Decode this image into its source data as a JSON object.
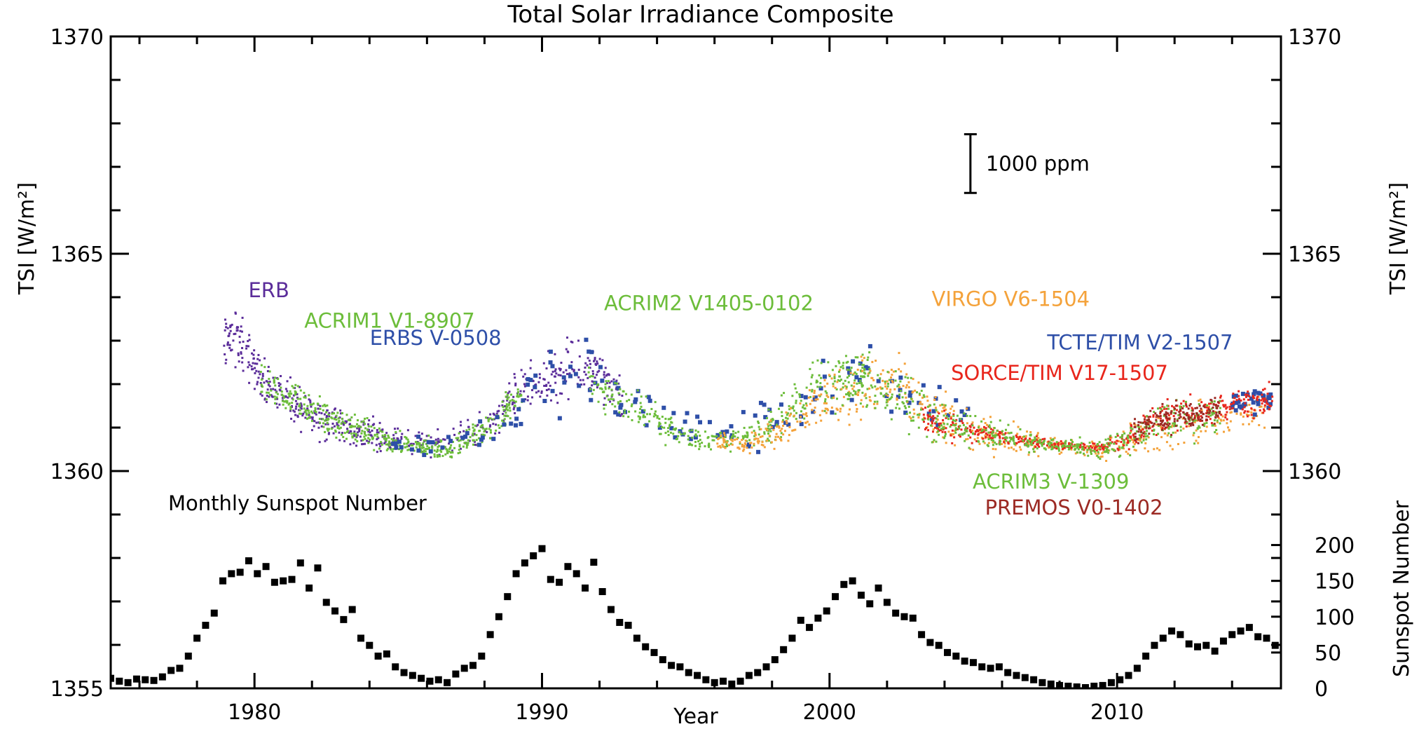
{
  "chart_data": {
    "type": "scatter",
    "title": "Total Solar Irradiance Composite",
    "xlabel": "Year",
    "ylabel": "TSI [W/m²]",
    "ylabel_right": "TSI [W/m²]",
    "y2label": "Sunspot Number",
    "xlim": [
      1975,
      2015.7
    ],
    "ylim": [
      1355,
      1370
    ],
    "y2lim": [
      0,
      225
    ],
    "xticks": [
      1980,
      1990,
      2000,
      2010
    ],
    "yticks": [
      1355,
      1360,
      1365,
      1370
    ],
    "y2ticks": [
      0,
      50,
      100,
      150,
      200
    ],
    "grid": false,
    "scale_bar": {
      "label": "1000 ppm",
      "x": 2004.9,
      "y_low": 1366.4,
      "y_high": 1367.75
    },
    "sunspot_label": "Monthly Sunspot Number",
    "series": [
      {
        "name": "ERB",
        "color": "#5b2d9a",
        "marker": "dot",
        "label_pos": [
          1980.5,
          1364.0
        ],
        "x": [
          1978.9,
          1979.3,
          1979.7,
          1980.1,
          1980.5,
          1981.0,
          1981.5,
          1982.0,
          1982.5,
          1983.0,
          1983.5,
          1984.0,
          1984.5,
          1985.0,
          1986.0,
          1987.0,
          1988.0,
          1988.7,
          1989.3,
          1990.0,
          1990.6,
          1991.2,
          1991.8,
          1992.3,
          1992.8
        ],
        "y": [
          1362.8,
          1363.2,
          1362.7,
          1362.3,
          1362.0,
          1361.7,
          1361.5,
          1361.3,
          1361.2,
          1361.0,
          1360.9,
          1360.9,
          1360.8,
          1360.7,
          1360.6,
          1360.8,
          1361.0,
          1361.4,
          1361.9,
          1362.1,
          1362.2,
          1362.4,
          1362.3,
          1361.9,
          1361.6
        ],
        "spread": [
          0.5,
          0.6,
          0.5,
          0.4,
          0.4,
          0.4,
          0.4,
          0.4,
          0.4,
          0.35,
          0.3,
          0.3,
          0.25,
          0.25,
          0.25,
          0.25,
          0.3,
          0.35,
          0.45,
          0.5,
          0.5,
          0.55,
          0.5,
          0.45,
          0.4
        ]
      },
      {
        "name": "ACRIM1 V1-8907",
        "color": "#6cbd3a",
        "marker": "dot",
        "label_pos": [
          1984.7,
          1363.3
        ],
        "x": [
          1980.2,
          1980.8,
          1981.3,
          1981.8,
          1982.3,
          1982.8,
          1983.3,
          1983.8,
          1984.3,
          1984.8,
          1985.3,
          1985.8,
          1986.3,
          1986.8,
          1987.3,
          1987.8,
          1988.3,
          1988.8,
          1989.3
        ],
        "y": [
          1362.0,
          1361.8,
          1361.6,
          1361.5,
          1361.3,
          1361.1,
          1361.0,
          1360.9,
          1360.75,
          1360.65,
          1360.6,
          1360.55,
          1360.5,
          1360.55,
          1360.65,
          1360.85,
          1361.1,
          1361.5,
          1361.8
        ],
        "spread": [
          0.35,
          0.35,
          0.35,
          0.35,
          0.35,
          0.3,
          0.3,
          0.3,
          0.25,
          0.2,
          0.2,
          0.2,
          0.2,
          0.2,
          0.2,
          0.25,
          0.3,
          0.35,
          0.35
        ]
      },
      {
        "name": "ERBS V-0508",
        "color": "#2e4fa8",
        "marker": "square",
        "label_pos": [
          1986.3,
          1362.9
        ],
        "x": [
          1984.8,
          1985.5,
          1986.5,
          1987.5,
          1988.5,
          1989.3,
          1990.0,
          1990.7,
          1991.4,
          1992.0,
          1992.7,
          1993.5,
          1994.3,
          1995.0,
          1995.8,
          1996.5,
          1997.3,
          1998.0,
          1998.8,
          1999.5,
          2000.2,
          2001.0,
          2001.8,
          2002.5,
          2003.3,
          2004.0,
          2005.0
        ],
        "y": [
          1360.7,
          1360.6,
          1360.6,
          1360.8,
          1361.1,
          1361.5,
          1361.9,
          1362.1,
          1362.2,
          1362.0,
          1361.7,
          1361.4,
          1361.2,
          1361.0,
          1360.9,
          1360.85,
          1360.95,
          1361.1,
          1361.5,
          1361.8,
          1362.0,
          1362.1,
          1362.0,
          1361.8,
          1361.6,
          1361.5,
          1361.4
        ],
        "spread": [
          0.3,
          0.25,
          0.25,
          0.3,
          0.35,
          0.6,
          0.7,
          0.7,
          0.7,
          0.7,
          0.6,
          0.6,
          0.5,
          0.45,
          0.4,
          0.4,
          0.5,
          0.5,
          0.6,
          0.6,
          0.7,
          0.7,
          0.6,
          0.6,
          0.5,
          0.5,
          0.4
        ]
      },
      {
        "name": "ACRIM2 V1405-0102",
        "color": "#6cbd3a",
        "marker": "dot",
        "label_pos": [
          1995.8,
          1363.7
        ],
        "x": [
          1991.6,
          1992.3,
          1993.0,
          1993.7,
          1994.4,
          1995.1,
          1995.8,
          1996.5,
          1997.2,
          1997.9,
          1998.6,
          1999.3,
          2000.0,
          2000.7,
          2001.4
        ],
        "y": [
          1362.1,
          1361.8,
          1361.5,
          1361.3,
          1361.0,
          1360.8,
          1360.7,
          1360.7,
          1360.8,
          1361.0,
          1361.4,
          1361.8,
          1362.0,
          1362.2,
          1362.1
        ],
        "spread": [
          0.4,
          0.4,
          0.35,
          0.3,
          0.3,
          0.25,
          0.2,
          0.2,
          0.25,
          0.3,
          0.4,
          0.5,
          0.6,
          0.6,
          0.6
        ]
      },
      {
        "name": "VIRGO V6-1504",
        "color": "#f4a23a",
        "marker": "dot",
        "label_pos": [
          2006.3,
          1363.8
        ],
        "x": [
          1996.1,
          1996.8,
          1997.5,
          1998.2,
          1998.9,
          1999.6,
          2000.3,
          2001.0,
          2001.7,
          2002.4,
          2003.1,
          2003.8,
          2004.5,
          2005.5,
          2006.5,
          2007.5,
          2008.5,
          2009.5,
          2010.5,
          2011.5,
          2012.5,
          2013.5,
          2014.5,
          2015.2
        ],
        "y": [
          1360.7,
          1360.65,
          1360.7,
          1360.9,
          1361.3,
          1361.6,
          1361.8,
          1361.9,
          1362.0,
          1361.9,
          1361.5,
          1361.2,
          1361.0,
          1360.8,
          1360.7,
          1360.6,
          1360.5,
          1360.5,
          1360.7,
          1360.9,
          1361.1,
          1361.2,
          1361.3,
          1361.4
        ],
        "spread": [
          0.15,
          0.15,
          0.2,
          0.3,
          0.4,
          0.5,
          0.6,
          0.6,
          0.6,
          0.6,
          0.5,
          0.5,
          0.4,
          0.35,
          0.3,
          0.25,
          0.2,
          0.2,
          0.3,
          0.4,
          0.4,
          0.4,
          0.4,
          0.4
        ]
      },
      {
        "name": "TCTE/TIM V2-1507",
        "color": "#2e4fa8",
        "marker": "square",
        "label_pos": [
          2010.8,
          1362.8
        ],
        "x": [
          2013.9,
          2014.2,
          2014.5,
          2014.8,
          2015.1,
          2015.4
        ],
        "y": [
          1361.5,
          1361.6,
          1361.7,
          1361.6,
          1361.7,
          1361.6
        ],
        "spread": [
          0.25,
          0.25,
          0.25,
          0.25,
          0.25,
          0.25
        ]
      },
      {
        "name": "SORCE/TIM V17-1507",
        "color": "#e8261c",
        "marker": "dot",
        "label_pos": [
          2008.0,
          1362.1
        ],
        "x": [
          2003.2,
          2003.8,
          2004.5,
          2005.2,
          2005.9,
          2006.6,
          2007.3,
          2008.0,
          2008.7,
          2009.4,
          2010.1,
          2010.8,
          2011.5,
          2012.2,
          2012.9,
          2013.6,
          2014.3,
          2015.0,
          2015.4
        ],
        "y": [
          1361.2,
          1361.1,
          1361.0,
          1360.9,
          1360.8,
          1360.7,
          1360.65,
          1360.6,
          1360.55,
          1360.55,
          1360.7,
          1360.95,
          1361.2,
          1361.3,
          1361.35,
          1361.45,
          1361.55,
          1361.6,
          1361.6
        ],
        "spread": [
          0.3,
          0.3,
          0.25,
          0.2,
          0.15,
          0.1,
          0.1,
          0.08,
          0.08,
          0.1,
          0.2,
          0.25,
          0.3,
          0.3,
          0.3,
          0.3,
          0.3,
          0.3,
          0.3
        ]
      },
      {
        "name": "ACRIM3 V-1309",
        "color": "#6cbd3a",
        "marker": "dot",
        "label_pos": [
          2007.7,
          1359.6
        ],
        "x": [
          2000.3,
          2001.0,
          2001.7,
          2002.4,
          2003.1,
          2003.8,
          2004.5,
          2005.2,
          2005.9,
          2006.6,
          2007.3,
          2008.0,
          2008.7,
          2009.4,
          2010.1,
          2010.8,
          2011.5,
          2012.2,
          2012.9,
          2013.6
        ],
        "y": [
          1362.1,
          1362.0,
          1361.9,
          1361.8,
          1361.4,
          1361.2,
          1361.0,
          1360.9,
          1360.8,
          1360.7,
          1360.65,
          1360.6,
          1360.55,
          1360.5,
          1360.6,
          1360.9,
          1361.1,
          1361.2,
          1361.2,
          1361.3
        ],
        "spread": [
          0.6,
          0.6,
          0.6,
          0.5,
          0.5,
          0.45,
          0.35,
          0.3,
          0.25,
          0.2,
          0.15,
          0.15,
          0.15,
          0.15,
          0.25,
          0.3,
          0.35,
          0.35,
          0.35,
          0.35
        ]
      },
      {
        "name": "PREMOS V0-1402",
        "color": "#9c2a24",
        "marker": "dot",
        "label_pos": [
          2008.5,
          1359.0
        ],
        "x": [
          2010.6,
          2011.1,
          2011.6,
          2012.1,
          2012.6,
          2013.1,
          2013.6
        ],
        "y": [
          1360.9,
          1361.1,
          1361.2,
          1361.25,
          1361.3,
          1361.35,
          1361.4
        ],
        "spread": [
          0.25,
          0.25,
          0.25,
          0.25,
          0.25,
          0.25,
          0.25
        ]
      }
    ],
    "sunspot_series": {
      "name": "Monthly Sunspot Number",
      "color": "#000000",
      "marker": "square",
      "x": [
        1975.0,
        1975.3,
        1975.6,
        1975.9,
        1976.2,
        1976.5,
        1976.8,
        1977.1,
        1977.4,
        1977.7,
        1978.0,
        1978.3,
        1978.6,
        1978.9,
        1979.2,
        1979.5,
        1979.8,
        1980.1,
        1980.4,
        1980.7,
        1981.0,
        1981.3,
        1981.6,
        1981.9,
        1982.2,
        1982.5,
        1982.8,
        1983.1,
        1983.4,
        1983.7,
        1984.0,
        1984.3,
        1984.6,
        1984.9,
        1985.2,
        1985.5,
        1985.8,
        1986.1,
        1986.4,
        1986.7,
        1987.0,
        1987.3,
        1987.6,
        1987.9,
        1988.2,
        1988.5,
        1988.8,
        1989.1,
        1989.4,
        1989.7,
        1990.0,
        1990.3,
        1990.6,
        1990.9,
        1991.2,
        1991.5,
        1991.8,
        1992.1,
        1992.4,
        1992.7,
        1993.0,
        1993.3,
        1993.6,
        1993.9,
        1994.2,
        1994.5,
        1994.8,
        1995.1,
        1995.4,
        1995.7,
        1996.0,
        1996.3,
        1996.6,
        1996.9,
        1997.2,
        1997.5,
        1997.8,
        1998.1,
        1998.4,
        1998.7,
        1999.0,
        1999.3,
        1999.6,
        1999.9,
        2000.2,
        2000.5,
        2000.8,
        2001.1,
        2001.4,
        2001.7,
        2002.0,
        2002.3,
        2002.6,
        2002.9,
        2003.2,
        2003.5,
        2003.8,
        2004.1,
        2004.4,
        2004.7,
        2005.0,
        2005.3,
        2005.6,
        2005.9,
        2006.2,
        2006.5,
        2006.8,
        2007.1,
        2007.4,
        2007.7,
        2008.0,
        2008.3,
        2008.6,
        2008.9,
        2009.2,
        2009.5,
        2009.8,
        2010.1,
        2010.4,
        2010.7,
        2011.0,
        2011.3,
        2011.6,
        2011.9,
        2012.2,
        2012.5,
        2012.8,
        2013.1,
        2013.4,
        2013.7,
        2014.0,
        2014.3,
        2014.6,
        2014.9,
        2015.2,
        2015.5
      ],
      "y": [
        14,
        10,
        8,
        13,
        12,
        11,
        16,
        25,
        28,
        45,
        70,
        88,
        105,
        150,
        160,
        162,
        178,
        160,
        170,
        148,
        150,
        152,
        175,
        140,
        168,
        120,
        108,
        96,
        110,
        70,
        60,
        45,
        48,
        30,
        22,
        18,
        14,
        10,
        12,
        8,
        20,
        28,
        32,
        45,
        75,
        100,
        128,
        160,
        175,
        185,
        195,
        152,
        148,
        170,
        160,
        140,
        176,
        135,
        110,
        92,
        88,
        70,
        58,
        50,
        40,
        32,
        30,
        22,
        18,
        12,
        8,
        10,
        6,
        10,
        18,
        22,
        30,
        40,
        54,
        70,
        95,
        85,
        98,
        108,
        128,
        145,
        150,
        130,
        118,
        140,
        120,
        105,
        100,
        98,
        75,
        64,
        60,
        50,
        45,
        38,
        36,
        30,
        28,
        30,
        22,
        18,
        15,
        12,
        8,
        6,
        4,
        3,
        2,
        1,
        3,
        4,
        8,
        12,
        18,
        28,
        45,
        60,
        70,
        80,
        75,
        62,
        58,
        60,
        52,
        66,
        75,
        80,
        85,
        72,
        70,
        60
      ]
    }
  }
}
